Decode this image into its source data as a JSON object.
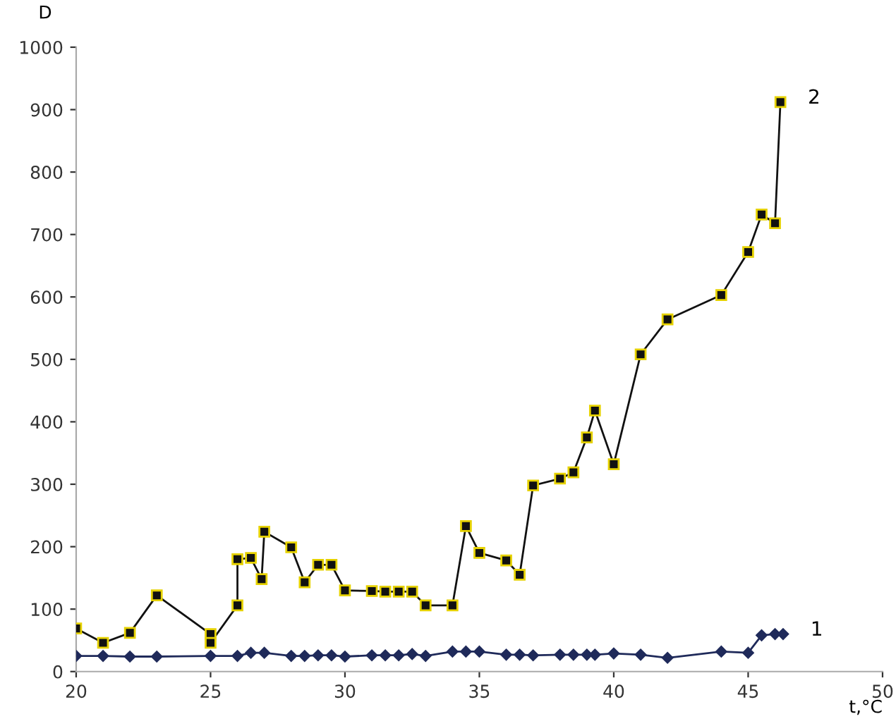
{
  "chart_data": {
    "type": "line",
    "xlabel": "t,°C",
    "ylabel": "D",
    "xlim": [
      20,
      50
    ],
    "xticks": [
      20,
      25,
      30,
      35,
      40,
      45,
      50
    ],
    "ylim": [
      0,
      1000
    ],
    "yticks": [
      0,
      100,
      200,
      300,
      400,
      500,
      600,
      700,
      800,
      900,
      1000
    ],
    "grid": false,
    "legend": false,
    "series": [
      {
        "name": "1",
        "color": "#1f2a5a",
        "marker": "diamond",
        "x": [
          20,
          21,
          22,
          23,
          25,
          26,
          26.5,
          27,
          28,
          28.5,
          29,
          29.5,
          30,
          31,
          31.5,
          32,
          32.5,
          33,
          34,
          34.5,
          35,
          36,
          36.5,
          37,
          38,
          38.5,
          39,
          39.3,
          40,
          41,
          42,
          44,
          45,
          45.5,
          46,
          46.3
        ],
        "values": [
          25,
          25,
          24,
          24,
          25,
          25,
          30,
          30,
          25,
          25,
          26,
          26,
          24,
          26,
          26,
          26,
          28,
          25,
          32,
          32,
          32,
          27,
          27,
          26,
          27,
          27,
          27,
          27,
          29,
          27,
          22,
          32,
          30,
          58,
          60,
          60
        ]
      },
      {
        "name": "2",
        "color": "#111111",
        "marker": "square",
        "x": [
          20,
          21,
          22,
          23,
          25,
          25,
          26,
          26,
          26.5,
          26.9,
          27,
          28,
          28.5,
          29,
          29.5,
          30,
          31,
          31.5,
          32,
          32.5,
          33,
          34,
          34.5,
          35,
          36,
          36.5,
          37,
          38,
          38.5,
          39,
          39.3,
          40,
          41,
          42,
          44,
          45,
          45.5,
          46,
          46.2
        ],
        "values": [
          69,
          46,
          62,
          122,
          60,
          46,
          106,
          180,
          182,
          148,
          224,
          199,
          143,
          171,
          171,
          130,
          129,
          128,
          128,
          128,
          106,
          106,
          233,
          190,
          178,
          155,
          298,
          309,
          319,
          375,
          418,
          332,
          508,
          564,
          603,
          672,
          732,
          718,
          912
        ]
      }
    ]
  }
}
